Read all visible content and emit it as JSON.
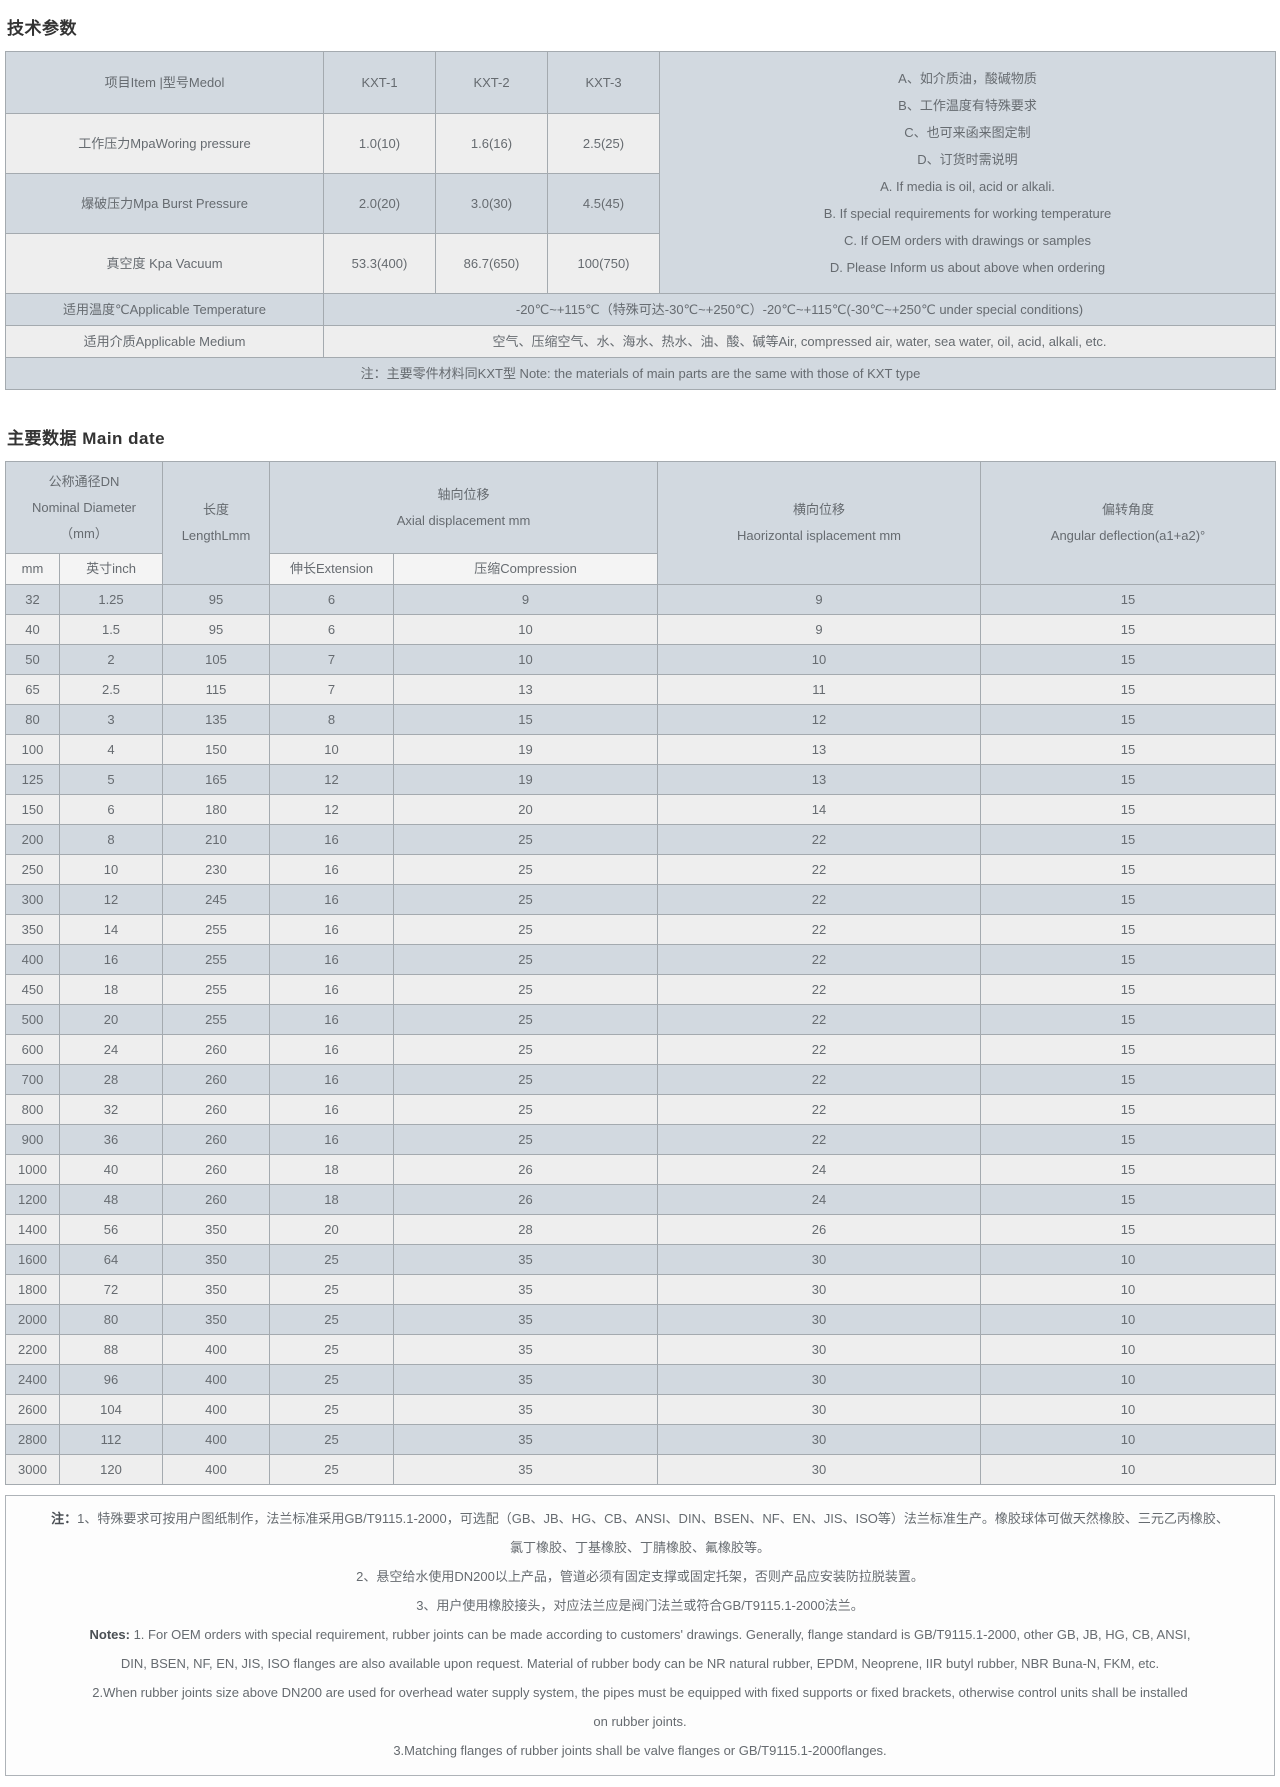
{
  "page": {
    "tech_title": "技术参数",
    "main_title": "主要数据 Main date"
  },
  "colors": {
    "band_blue": "#d2d9e0",
    "band_light": "#eeeeee",
    "border": "#a4aaaf",
    "text": "#666b70",
    "title_text": "#333333"
  },
  "tech_table": {
    "header": {
      "item_label": "项目Item |型号Medol",
      "models": [
        "KXT-1",
        "KXT-2",
        "KXT-3"
      ]
    },
    "rows": [
      {
        "label": "工作压力MpaWoring pressure",
        "values": [
          "1.0(10)",
          "1.6(16)",
          "2.5(25)"
        ]
      },
      {
        "label": "爆破压力Mpa Burst Pressure",
        "values": [
          "2.0(20)",
          "3.0(30)",
          "4.5(45)"
        ]
      },
      {
        "label": "真空度 Kpa Vacuum",
        "values": [
          "53.3(400)",
          "86.7(650)",
          "100(750)"
        ]
      }
    ],
    "side_notes": [
      "A、如介质油，酸碱物质",
      "B、工作温度有特殊要求",
      "C、也可来函来图定制",
      "D、订货时需说明",
      "A. If media is oil, acid or alkali.",
      "B. If special requirements for working temperature",
      "C. If OEM orders with drawings or samples",
      "D. Please Inform us about above when ordering"
    ],
    "temperature": {
      "label": "适用温度℃Applicable Temperature",
      "value": "-20℃~+115℃（特殊可达-30℃~+250℃）-20℃~+115℃(-30℃~+250℃ under special conditions)"
    },
    "medium": {
      "label": "适用介质Applicable Medium",
      "value": "空气、压缩空气、水、海水、热水、油、酸、碱等Air, compressed air, water, sea water, oil, acid, alkali, etc."
    },
    "footnote": "注：主要零件材料同KXT型 Note: the materials of main parts are the same with those of KXT type"
  },
  "main_table": {
    "headers": {
      "dn": [
        "公称通径DN",
        "Nominal Diameter",
        "（mm）"
      ],
      "length": [
        "长度",
        "LengthLmm"
      ],
      "axial": [
        "轴向位移",
        "Axial displacement mm"
      ],
      "horizontal": [
        "横向位移",
        "Haorizontal isplacement mm"
      ],
      "angular": [
        "偏转角度",
        "Angular deflection(a1+a2)°"
      ],
      "sub_mm": "mm",
      "sub_inch": "英寸inch",
      "sub_extension": "伸长Extension",
      "sub_compression": "压缩Compression"
    },
    "rows": [
      [
        "32",
        "1.25",
        "95",
        "6",
        "9",
        "9",
        "15"
      ],
      [
        "40",
        "1.5",
        "95",
        "6",
        "10",
        "9",
        "15"
      ],
      [
        "50",
        "2",
        "105",
        "7",
        "10",
        "10",
        "15"
      ],
      [
        "65",
        "2.5",
        "115",
        "7",
        "13",
        "11",
        "15"
      ],
      [
        "80",
        "3",
        "135",
        "8",
        "15",
        "12",
        "15"
      ],
      [
        "100",
        "4",
        "150",
        "10",
        "19",
        "13",
        "15"
      ],
      [
        "125",
        "5",
        "165",
        "12",
        "19",
        "13",
        "15"
      ],
      [
        "150",
        "6",
        "180",
        "12",
        "20",
        "14",
        "15"
      ],
      [
        "200",
        "8",
        "210",
        "16",
        "25",
        "22",
        "15"
      ],
      [
        "250",
        "10",
        "230",
        "16",
        "25",
        "22",
        "15"
      ],
      [
        "300",
        "12",
        "245",
        "16",
        "25",
        "22",
        "15"
      ],
      [
        "350",
        "14",
        "255",
        "16",
        "25",
        "22",
        "15"
      ],
      [
        "400",
        "16",
        "255",
        "16",
        "25",
        "22",
        "15"
      ],
      [
        "450",
        "18",
        "255",
        "16",
        "25",
        "22",
        "15"
      ],
      [
        "500",
        "20",
        "255",
        "16",
        "25",
        "22",
        "15"
      ],
      [
        "600",
        "24",
        "260",
        "16",
        "25",
        "22",
        "15"
      ],
      [
        "700",
        "28",
        "260",
        "16",
        "25",
        "22",
        "15"
      ],
      [
        "800",
        "32",
        "260",
        "16",
        "25",
        "22",
        "15"
      ],
      [
        "900",
        "36",
        "260",
        "16",
        "25",
        "22",
        "15"
      ],
      [
        "1000",
        "40",
        "260",
        "18",
        "26",
        "24",
        "15"
      ],
      [
        "1200",
        "48",
        "260",
        "18",
        "26",
        "24",
        "15"
      ],
      [
        "1400",
        "56",
        "350",
        "20",
        "28",
        "26",
        "15"
      ],
      [
        "1600",
        "64",
        "350",
        "25",
        "35",
        "30",
        "10"
      ],
      [
        "1800",
        "72",
        "350",
        "25",
        "35",
        "30",
        "10"
      ],
      [
        "2000",
        "80",
        "350",
        "25",
        "35",
        "30",
        "10"
      ],
      [
        "2200",
        "88",
        "400",
        "25",
        "35",
        "30",
        "10"
      ],
      [
        "2400",
        "96",
        "400",
        "25",
        "35",
        "30",
        "10"
      ],
      [
        "2600",
        "104",
        "400",
        "25",
        "35",
        "30",
        "10"
      ],
      [
        "2800",
        "112",
        "400",
        "25",
        "35",
        "30",
        "10"
      ],
      [
        "3000",
        "120",
        "400",
        "25",
        "35",
        "30",
        "10"
      ]
    ]
  },
  "notes": {
    "lines": [
      {
        "bold": "注：",
        "text": "1、特殊要求可按用户图纸制作，法兰标准采用GB/T9115.1-2000，可选配（GB、JB、HG、CB、ANSI、DIN、BSEN、NF、EN、JIS、ISO等）法兰标准生产。橡胶球体可做天然橡胶、三元乙丙橡胶、"
      },
      {
        "text": "氯丁橡胶、丁基橡胶、丁腈橡胶、氟橡胶等。"
      },
      {
        "text": "2、悬空给水使用DN200以上产品，管道必须有固定支撑或固定托架，否则产品应安装防拉脱装置。"
      },
      {
        "text": "3、用户使用橡胶接头，对应法兰应是阀门法兰或符合GB/T9115.1-2000法兰。"
      },
      {
        "bold": "Notes:",
        "text": " 1. For OEM orders with special requirement, rubber joints can be made according to customers' drawings. Generally, flange standard is GB/T9115.1-2000, other GB, JB, HG, CB, ANSI,"
      },
      {
        "text": "DIN, BSEN, NF, EN, JIS, ISO flanges are also available upon request. Material of rubber body can be NR natural rubber, EPDM, Neoprene, IIR butyl rubber, NBR Buna-N, FKM, etc."
      },
      {
        "text": "2.When rubber joints size above DN200 are used for overhead water supply system, the pipes must be equipped with fixed supports or fixed brackets, otherwise control units shall be installed"
      },
      {
        "text": "on rubber joints."
      },
      {
        "text": "3.Matching flanges of rubber joints shall be valve flanges or GB/T9115.1-2000flanges."
      }
    ]
  }
}
